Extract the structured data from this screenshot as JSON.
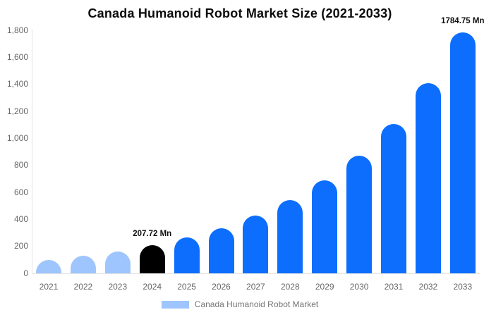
{
  "title": "Canada Humanoid Robot Market Size (2021-2033)",
  "legend": {
    "label": "Canada Humanoid Robot Market",
    "swatch_color": "#9ec5fe"
  },
  "colors": {
    "historical_bar": "#9ec5fe",
    "base_year_bar": "#000000",
    "forecast_bar": "#0d6efd",
    "axis_line": "#e3e3e3",
    "tick_text": "#666666",
    "annotation_text": "#111111"
  },
  "chart_data": {
    "type": "bar",
    "title": "Canada Humanoid Robot Market Size (2021-2033)",
    "xlabel": "",
    "ylabel": "",
    "unit": "Mn",
    "categories": [
      "2021",
      "2022",
      "2023",
      "2024",
      "2025",
      "2026",
      "2027",
      "2028",
      "2029",
      "2030",
      "2031",
      "2032",
      "2033"
    ],
    "values": [
      101,
      129,
      163,
      207.72,
      264,
      335,
      426,
      541,
      687,
      872,
      1108,
      1407,
      1784.75
    ],
    "bar_colors": [
      "#9ec5fe",
      "#9ec5fe",
      "#9ec5fe",
      "#000000",
      "#0d6efd",
      "#0d6efd",
      "#0d6efd",
      "#0d6efd",
      "#0d6efd",
      "#0d6efd",
      "#0d6efd",
      "#0d6efd",
      "#0d6efd"
    ],
    "annotations": [
      {
        "index": 3,
        "text": "207.72 Mn"
      },
      {
        "index": 12,
        "text": "1784.75 Mn"
      }
    ],
    "ylim": [
      0,
      1800
    ],
    "ytick_step": 200,
    "ytick_labels": [
      "0",
      "200",
      "400",
      "600",
      "800",
      "1,000",
      "1,200",
      "1,400",
      "1,600",
      "1,800"
    ],
    "ytick_values": [
      0,
      200,
      400,
      600,
      800,
      1000,
      1200,
      1400,
      1600,
      1800
    ],
    "grid": false,
    "legend_position": "bottom",
    "legend_entries": [
      "Canada Humanoid Robot Market"
    ]
  }
}
